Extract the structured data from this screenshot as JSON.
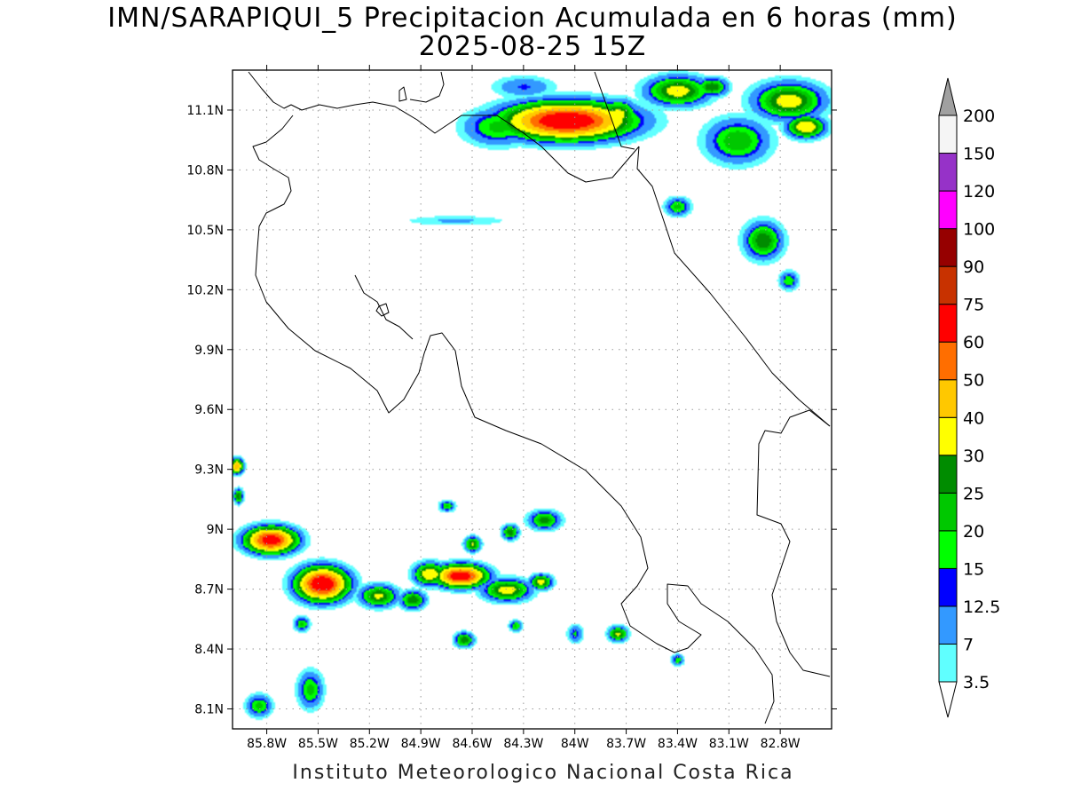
{
  "title_line1": "IMN/SARAPIQUI_5 Precipitacion Acumulada en 6 horas (mm)",
  "title_line2": "2025-08-25 15Z",
  "footer": "Instituto Meteorologico Nacional Costa Rica",
  "map": {
    "lon_range": [
      -86.0,
      -82.5
    ],
    "lat_range": [
      8.0,
      11.3
    ],
    "lat_ticks": [
      {
        "v": 11.1,
        "label": "11.1N"
      },
      {
        "v": 10.8,
        "label": "10.8N"
      },
      {
        "v": 10.5,
        "label": "10.5N"
      },
      {
        "v": 10.2,
        "label": "10.2N"
      },
      {
        "v": 9.9,
        "label": "9.9N"
      },
      {
        "v": 9.6,
        "label": "9.6N"
      },
      {
        "v": 9.3,
        "label": "9.3N"
      },
      {
        "v": 9.0,
        "label": "9N"
      },
      {
        "v": 8.7,
        "label": "8.7N"
      },
      {
        "v": 8.4,
        "label": "8.4N"
      },
      {
        "v": 8.1,
        "label": "8.1N"
      }
    ],
    "lon_ticks": [
      {
        "v": -85.8,
        "label": "85.8W"
      },
      {
        "v": -85.5,
        "label": "85.5W"
      },
      {
        "v": -85.2,
        "label": "85.2W"
      },
      {
        "v": -84.9,
        "label": "84.9W"
      },
      {
        "v": -84.6,
        "label": "84.6W"
      },
      {
        "v": -84.3,
        "label": "84.3W"
      },
      {
        "v": -84.0,
        "label": "84W"
      },
      {
        "v": -83.7,
        "label": "83.7W"
      },
      {
        "v": -83.4,
        "label": "83.4W"
      },
      {
        "v": -83.1,
        "label": "83.1W"
      },
      {
        "v": -82.8,
        "label": "82.8W"
      }
    ]
  },
  "colorbar": {
    "levels": [
      {
        "label": "3.5",
        "color": "#60ffff"
      },
      {
        "label": "7",
        "color": "#3399ff"
      },
      {
        "label": "12.5",
        "color": "#0000ff"
      },
      {
        "label": "15",
        "color": "#00ff00"
      },
      {
        "label": "20",
        "color": "#00c800"
      },
      {
        "label": "25",
        "color": "#008c00"
      },
      {
        "label": "30",
        "color": "#ffff00"
      },
      {
        "label": "40",
        "color": "#ffc800"
      },
      {
        "label": "50",
        "color": "#ff6e00"
      },
      {
        "label": "60",
        "color": "#ff0000"
      },
      {
        "label": "75",
        "color": "#c83200"
      },
      {
        "label": "90",
        "color": "#960000"
      },
      {
        "label": "100",
        "color": "#ff00ff"
      },
      {
        "label": "120",
        "color": "#9632c8"
      },
      {
        "label": "150",
        "color": "#f5f5f5"
      },
      {
        "label": "200",
        "color": "#a0a0a0"
      }
    ]
  },
  "blobs": [
    {
      "lon": -84.05,
      "lat": 11.05,
      "ax": 0.4,
      "ay": 0.1,
      "peak": 75
    },
    {
      "lon": -84.45,
      "lat": 11.02,
      "ax": 0.22,
      "ay": 0.1,
      "peak": 22
    },
    {
      "lon": -83.75,
      "lat": 11.08,
      "ax": 0.12,
      "ay": 0.08,
      "peak": 35
    },
    {
      "lon": -83.4,
      "lat": 11.2,
      "ax": 0.2,
      "ay": 0.08,
      "peak": 35
    },
    {
      "lon": -83.05,
      "lat": 10.95,
      "ax": 0.2,
      "ay": 0.12,
      "peak": 25
    },
    {
      "lon": -82.75,
      "lat": 11.15,
      "ax": 0.22,
      "ay": 0.1,
      "peak": 35
    },
    {
      "lon": -82.65,
      "lat": 11.02,
      "ax": 0.12,
      "ay": 0.06,
      "peak": 40
    },
    {
      "lon": -83.2,
      "lat": 11.22,
      "ax": 0.1,
      "ay": 0.05,
      "peak": 30
    },
    {
      "lon": -84.3,
      "lat": 11.22,
      "ax": 0.2,
      "ay": 0.06,
      "peak": 13
    },
    {
      "lon": -83.4,
      "lat": 10.62,
      "ax": 0.08,
      "ay": 0.05,
      "peak": 22
    },
    {
      "lon": -82.9,
      "lat": 10.45,
      "ax": 0.12,
      "ay": 0.1,
      "peak": 30
    },
    {
      "lon": -82.75,
      "lat": 10.25,
      "ax": 0.06,
      "ay": 0.05,
      "peak": 20
    },
    {
      "lon": -84.7,
      "lat": 10.55,
      "ax": 0.35,
      "ay": 0.03,
      "peak": 8
    },
    {
      "lon": -85.78,
      "lat": 8.95,
      "ax": 0.16,
      "ay": 0.07,
      "peak": 70
    },
    {
      "lon": -85.48,
      "lat": 8.73,
      "ax": 0.16,
      "ay": 0.09,
      "peak": 75
    },
    {
      "lon": -85.15,
      "lat": 8.67,
      "ax": 0.12,
      "ay": 0.06,
      "peak": 32
    },
    {
      "lon": -84.85,
      "lat": 8.78,
      "ax": 0.1,
      "ay": 0.06,
      "peak": 40
    },
    {
      "lon": -84.95,
      "lat": 8.65,
      "ax": 0.08,
      "ay": 0.05,
      "peak": 30
    },
    {
      "lon": -84.67,
      "lat": 8.77,
      "ax": 0.16,
      "ay": 0.06,
      "peak": 72
    },
    {
      "lon": -84.4,
      "lat": 8.7,
      "ax": 0.15,
      "ay": 0.06,
      "peak": 35
    },
    {
      "lon": -84.2,
      "lat": 8.74,
      "ax": 0.07,
      "ay": 0.04,
      "peak": 35
    },
    {
      "lon": -84.18,
      "lat": 9.05,
      "ax": 0.1,
      "ay": 0.05,
      "peak": 28
    },
    {
      "lon": -84.6,
      "lat": 8.93,
      "ax": 0.05,
      "ay": 0.04,
      "peak": 32
    },
    {
      "lon": -84.38,
      "lat": 8.99,
      "ax": 0.05,
      "ay": 0.04,
      "peak": 30
    },
    {
      "lon": -84.65,
      "lat": 8.45,
      "ax": 0.06,
      "ay": 0.04,
      "peak": 30
    },
    {
      "lon": -83.75,
      "lat": 8.48,
      "ax": 0.06,
      "ay": 0.04,
      "peak": 32
    },
    {
      "lon": -85.85,
      "lat": 8.12,
      "ax": 0.08,
      "ay": 0.06,
      "peak": 22
    },
    {
      "lon": -85.55,
      "lat": 8.2,
      "ax": 0.08,
      "ay": 0.1,
      "peak": 22
    },
    {
      "lon": -85.98,
      "lat": 9.32,
      "ax": 0.04,
      "ay": 0.04,
      "peak": 50
    },
    {
      "lon": -85.97,
      "lat": 9.17,
      "ax": 0.03,
      "ay": 0.04,
      "peak": 30
    },
    {
      "lon": -85.6,
      "lat": 8.53,
      "ax": 0.05,
      "ay": 0.04,
      "peak": 22
    },
    {
      "lon": -84.35,
      "lat": 8.52,
      "ax": 0.04,
      "ay": 0.03,
      "peak": 22
    },
    {
      "lon": -83.4,
      "lat": 8.35,
      "ax": 0.04,
      "ay": 0.03,
      "peak": 20
    },
    {
      "lon": -84.0,
      "lat": 8.48,
      "ax": 0.05,
      "ay": 0.05,
      "peak": 16
    },
    {
      "lon": -84.75,
      "lat": 9.12,
      "ax": 0.05,
      "ay": 0.03,
      "peak": 22
    }
  ],
  "coast_paths": [
    "M 280,81 L 295,100 L 308,115 L 320,122 L 328,118 L 340,124 L 360,118 L 380,122 L 400,118 L 420,115 L 445,120 L 470,135 L 490,150 L 520,130 L 560,130 L 590,150 L 610,165 L 640,195 L 660,205 L 690,200 L 720,165",
    "M 497,81 L 500,95 L 495,108 L 480,115 L 462,112",
    "M 670,81 L 700,165 L 715,168",
    "M 720,165 L 718,190 L 735,210 L 745,240 L 760,285 L 800,330 L 840,380 L 870,420 L 900,450 L 935,480",
    "M 330,130 L 318,145 L 300,160 L 285,165 L 292,180 L 308,190 L 325,200 L 328,215 L 320,230 L 300,240 L 292,255 L 290,280 L 288,310 L 300,340 L 325,370 L 355,395 L 395,415 L 425,440 L 438,465 L 455,450 L 472,420 L 478,398 L 485,378 L 498,375 L 513,395 L 520,435 L 535,470 L 570,485 L 610,500 L 660,530 L 700,570 L 722,605 L 730,640 L 718,660 L 700,680 L 710,705 L 740,725 L 760,735 L 775,730 L 790,715 L 765,700 L 752,680 L 752,658 L 775,660 L 790,680 L 820,700 L 850,730 L 870,760 L 872,790 L 862,815",
    "M 400,310 L 410,330 L 425,340 L 435,360 L 450,368 L 465,382",
    "M 935,480 L 912,462 L 890,470 L 880,488 L 862,485 L 855,500 L 853,580 L 880,590 L 890,610 L 880,640 L 870,670 L 875,700 L 890,735 L 905,755 L 935,762",
    "M 427,345 L 435,342 L 438,352 L 430,356 L 424,350 Z",
    "M 450,102 L 455,98 L 458,112 L 450,114 Z"
  ]
}
